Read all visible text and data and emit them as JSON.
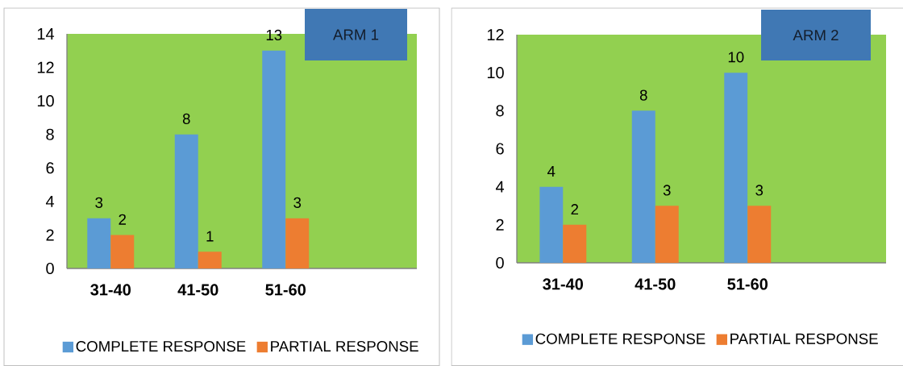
{
  "chart_data": [
    {
      "type": "bar",
      "title": "ARM 1",
      "categories": [
        "31-40",
        "41-50",
        "51-60",
        null
      ],
      "series": [
        {
          "name": "COMPLETE RESPONSE",
          "color": "#5b9bd5",
          "values": [
            3,
            8,
            13,
            null
          ]
        },
        {
          "name": "PARTIAL RESPONSE",
          "color": "#ed7d31",
          "values": [
            2,
            1,
            3,
            null
          ]
        }
      ],
      "ylim": [
        0,
        14
      ],
      "yticks": [
        0,
        2,
        4,
        6,
        8,
        10,
        12,
        14
      ],
      "data_labels": true,
      "legend": "bottom",
      "grid": false
    },
    {
      "type": "bar",
      "title": "ARM 2",
      "categories": [
        "31-40",
        "41-50",
        "51-60",
        null
      ],
      "series": [
        {
          "name": "COMPLETE RESPONSE",
          "color": "#5b9bd5",
          "values": [
            4,
            8,
            10,
            null
          ]
        },
        {
          "name": "PARTIAL RESPONSE",
          "color": "#ed7d31",
          "values": [
            2,
            3,
            3,
            null
          ]
        }
      ],
      "ylim": [
        0,
        12
      ],
      "yticks": [
        0,
        2,
        4,
        6,
        8,
        10,
        12
      ],
      "data_labels": true,
      "legend": "bottom",
      "grid": false
    }
  ]
}
